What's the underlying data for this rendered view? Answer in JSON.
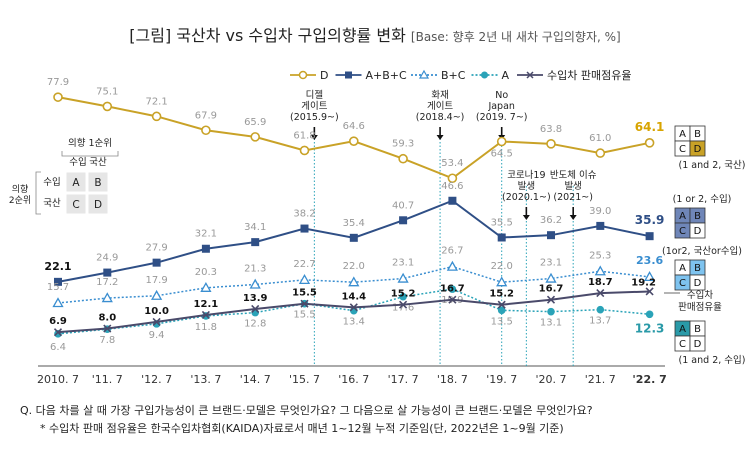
{
  "title": "[그림] 국산차 vs 수입차 구입의향률 변화",
  "subtitle": "[Base: 향후 2년 내 새차 구입의향자, %]",
  "chart_data": {
    "type": "line",
    "categories": [
      "2010. 7",
      "'11. 7",
      "'12. 7",
      "'13. 7",
      "'14. 7",
      "'15. 7",
      "'16. 7",
      "'17. 7",
      "'18. 7",
      "'19. 7",
      "'20. 7",
      "'21. 7",
      "'22. 7"
    ],
    "ylim": [
      0,
      85
    ],
    "series": [
      {
        "name": "D",
        "color": "#c9a227",
        "style": "solid",
        "marker": "circle-open",
        "values": [
          77.9,
          75.1,
          72.1,
          67.9,
          65.9,
          61.8,
          64.6,
          59.3,
          53.4,
          64.5,
          63.8,
          61.0,
          64.1
        ],
        "labels": [
          "77.9",
          "75.1",
          "72.1",
          "67.9",
          "65.9",
          "61.8",
          "64.6",
          "59.3",
          "53.4",
          "64.5",
          "63.8",
          "61.0",
          "64.1"
        ]
      },
      {
        "name": "A+B+C",
        "color": "#2f4f86",
        "style": "solid",
        "marker": "square",
        "values": [
          22.1,
          24.9,
          27.9,
          32.1,
          34.1,
          38.2,
          35.4,
          40.7,
          46.6,
          35.5,
          36.2,
          39.0,
          35.9
        ],
        "labels": [
          "22.1",
          "24.9",
          "27.9",
          "32.1",
          "34.1",
          "38.2",
          "35.4",
          "40.7",
          "46.6",
          "35.5",
          "36.2",
          "39.0",
          "35.9"
        ]
      },
      {
        "name": "B+C",
        "color": "#3a8ed0",
        "style": "dotted",
        "marker": "triangle-open",
        "values": [
          15.7,
          17.2,
          17.9,
          20.3,
          21.3,
          22.7,
          22.0,
          23.1,
          26.7,
          22.0,
          23.1,
          25.3,
          23.6
        ],
        "labels": [
          "15.7",
          "17.2",
          "17.9",
          "20.3",
          "21.3",
          "22.7",
          "22.0",
          "23.1",
          "26.7",
          "22.0",
          "23.1",
          "25.3",
          "23.6"
        ]
      },
      {
        "name": "A",
        "color": "#2aa3b8",
        "style": "dotted",
        "marker": "circle",
        "values": [
          6.4,
          7.8,
          9.4,
          11.8,
          12.8,
          15.5,
          13.4,
          17.6,
          19.9,
          13.5,
          13.1,
          13.7,
          12.3
        ],
        "labels": [
          "6.4",
          "7.8",
          "9.4",
          "11.8",
          "12.8",
          "15.5",
          "13.4",
          "17.6",
          "19.9",
          "13.5",
          "13.1",
          "13.7",
          "12.3"
        ]
      },
      {
        "name": "수입차 판매점유율",
        "color": "#4a4a6a",
        "style": "solid",
        "marker": "x",
        "values": [
          6.9,
          8.0,
          10.0,
          12.1,
          13.9,
          15.5,
          14.4,
          15.2,
          16.7,
          15.2,
          16.7,
          18.7,
          19.2
        ],
        "labels": [
          "6.9",
          "8.0",
          "10.0",
          "12.1",
          "13.9",
          "15.5",
          "14.4",
          "15.2",
          "16.7",
          "15.2",
          "16.7",
          "18.7",
          "19.2"
        ]
      }
    ],
    "events": [
      {
        "text": [
          "디젤",
          "게이트",
          "(2015.9~)"
        ],
        "x": 5.2
      },
      {
        "text": [
          "화재",
          "게이트",
          "(2018.4~)"
        ],
        "x": 7.75
      },
      {
        "text": [
          "No",
          "Japan",
          "(2019. 7~)"
        ],
        "x": 9.0
      },
      {
        "text": [
          "코로나19",
          "발생",
          "(2020.1~)"
        ],
        "x": 9.5
      },
      {
        "text": [
          "반도체 이슈",
          "발생",
          "(2021~)"
        ],
        "x": 10.45
      }
    ],
    "matrix_legend": {
      "title_col": "의향 1순위",
      "title_row": "의향 2순위",
      "col_heads": [
        "수입",
        "국산"
      ],
      "row_heads": [
        "수입",
        "국산"
      ],
      "cells": [
        "A",
        "B",
        "C",
        "D"
      ]
    },
    "right_boxes": [
      {
        "cells": [
          "A",
          "B",
          "C",
          "D"
        ],
        "highlight": [
          3
        ],
        "color": "#c9a227",
        "caption": "(1 and 2, 국산)"
      },
      {
        "cells": [
          "A",
          "B",
          "C",
          "D"
        ],
        "highlight": [
          0,
          1,
          2
        ],
        "color": "#6f86b8",
        "caption_top": "(1 or 2, 수입)"
      },
      {
        "cells": [
          "A",
          "B",
          "C",
          "D"
        ],
        "highlight": [
          1,
          2
        ],
        "color": "#7ec3ef",
        "caption_top": "(1or2, 국산or수입)"
      },
      {
        "cells": [
          "A",
          "B",
          "C",
          "D"
        ],
        "highlight": [
          0
        ],
        "color": "#2a9aa8",
        "caption": "(1 and 2, 수입)"
      }
    ],
    "share_label": [
      "수입차",
      "판매점유율"
    ]
  },
  "footnotes": [
    "Q. 다음 차를 살 때 가장 구입가능성이 큰 브랜드·모델은 무엇인가요? 그 다음으로 살 가능성이 큰 브랜드·모델은 무엇인가요?",
    "* 수입차 판매 점유율은 한국수입차협회(KAIDA)자료로서 매년 1~12월 누적 기준임(단, 2022년은 1~9월 기준)"
  ]
}
